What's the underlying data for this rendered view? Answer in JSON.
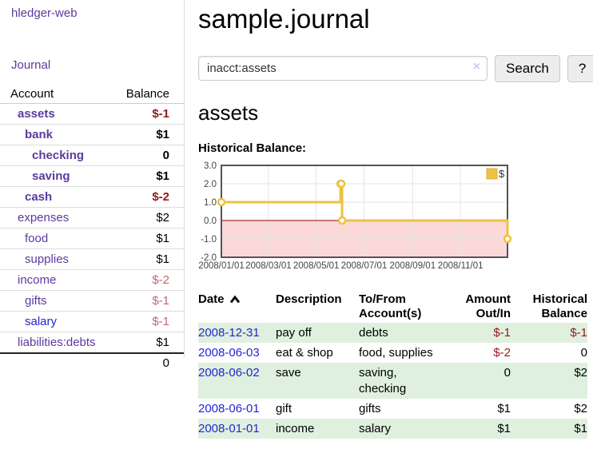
{
  "app": {
    "title": "hledger-web"
  },
  "colors": {
    "link_purple": "#5c3a9e",
    "link_blue": "#2424d4",
    "negative": "#96181b",
    "muted_negative": "#c0696f",
    "row_green": "#dff0de",
    "chart_gold": "#edc240",
    "chart_negative_fill": "#fbd9d9",
    "zero_line": "#8b0000"
  },
  "sidebar": {
    "journal_link": "Journal",
    "table": {
      "account_header": "Account",
      "balance_header": "Balance",
      "rows": [
        {
          "name": "assets",
          "indent": 1,
          "bold": true,
          "link": "purple",
          "balance": "$-1",
          "balance_class": "negative"
        },
        {
          "name": "bank",
          "indent": 2,
          "bold": true,
          "link": "purple",
          "balance": "$1",
          "balance_class": ""
        },
        {
          "name": "checking",
          "indent": 3,
          "bold": true,
          "link": "purple",
          "balance": "0",
          "balance_class": ""
        },
        {
          "name": "saving",
          "indent": 3,
          "bold": true,
          "link": "purple",
          "balance": "$1",
          "balance_class": ""
        },
        {
          "name": "cash",
          "indent": 2,
          "bold": true,
          "link": "purple",
          "balance": "$-2",
          "balance_class": "negative"
        },
        {
          "name": "expenses",
          "indent": 1,
          "bold": false,
          "link": "purple",
          "balance": "$2",
          "balance_class": ""
        },
        {
          "name": "food",
          "indent": 2,
          "bold": false,
          "link": "purple",
          "balance": "$1",
          "balance_class": ""
        },
        {
          "name": "supplies",
          "indent": 2,
          "bold": false,
          "link": "purple",
          "balance": "$1",
          "balance_class": ""
        },
        {
          "name": "income",
          "indent": 1,
          "bold": false,
          "link": "purple",
          "balance": "$-2",
          "balance_class": "negative-muted"
        },
        {
          "name": "gifts",
          "indent": 2,
          "bold": false,
          "link": "purple",
          "balance": "$-1",
          "balance_class": "negative-muted"
        },
        {
          "name": "salary",
          "indent": 2,
          "bold": false,
          "link": "blue",
          "balance": "$-1",
          "balance_class": "negative-muted"
        },
        {
          "name": "liabilities:debts",
          "indent": 1,
          "bold": false,
          "link": "purple",
          "balance": "$1",
          "balance_class": ""
        }
      ],
      "total": "0"
    }
  },
  "header": {
    "title": "sample.journal"
  },
  "search": {
    "value": "inacct:assets",
    "clear_icon": "×",
    "button": "Search",
    "help_button": "?"
  },
  "account_page": {
    "heading": "assets",
    "chart_label": "Historical Balance:"
  },
  "chart_data": {
    "type": "line",
    "step": true,
    "title": "Historical Balance:",
    "series": [
      {
        "name": "$",
        "color": "#edc240",
        "points": [
          {
            "date": "2008-01-01",
            "value": 1
          },
          {
            "date": "2008-06-01",
            "value": 2
          },
          {
            "date": "2008-06-02",
            "value": 2
          },
          {
            "date": "2008-06-03",
            "value": 0
          },
          {
            "date": "2008-12-31",
            "value": -1
          }
        ]
      }
    ],
    "x_tick_labels": [
      "2008/01/01",
      "2008/03/01",
      "2008/05/01",
      "2008/07/01",
      "2008/09/01",
      "2008/11/01"
    ],
    "y_ticks": [
      3.0,
      2.0,
      1.0,
      0.0,
      -1.0,
      -2.0
    ],
    "ylim": [
      -2.0,
      3.0
    ],
    "grid": true,
    "legend_position": "top-right",
    "negative_region_color": "#fbd9d9",
    "zero_line_color": "#8b0000"
  },
  "register": {
    "columns": [
      "Date",
      "Description",
      "To/From Account(s)",
      "Amount Out/In",
      "Historical Balance"
    ],
    "sort_column": "Date",
    "sort_direction": "ascending",
    "rows": [
      {
        "date": "2008-12-31",
        "description": "pay off",
        "accounts": "debts",
        "amount": "$-1",
        "amount_class": "negative",
        "balance": "$-1",
        "balance_class": "negative"
      },
      {
        "date": "2008-06-03",
        "description": "eat & shop",
        "accounts": "food, supplies",
        "amount": "$-2",
        "amount_class": "negative",
        "balance": "0",
        "balance_class": ""
      },
      {
        "date": "2008-06-02",
        "description": "save",
        "accounts": "saving, checking",
        "amount": "0",
        "amount_class": "",
        "balance": "$2",
        "balance_class": ""
      },
      {
        "date": "2008-06-01",
        "description": "gift",
        "accounts": "gifts",
        "amount": "$1",
        "amount_class": "",
        "balance": "$2",
        "balance_class": ""
      },
      {
        "date": "2008-01-01",
        "description": "income",
        "accounts": "salary",
        "amount": "$1",
        "amount_class": "",
        "balance": "$1",
        "balance_class": ""
      }
    ]
  }
}
